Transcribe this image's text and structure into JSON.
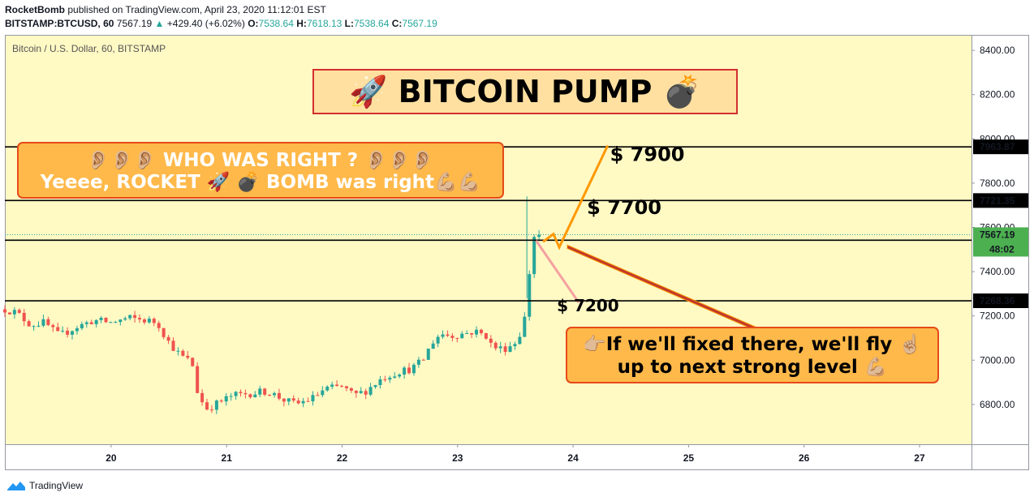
{
  "header": {
    "author": "RocketBomb",
    "published_text": "published on TradingView.com, April 23, 2020 11:12:01 EST",
    "symbol": "BITSTAMP:BTCUSD, 60",
    "last": "7567.19",
    "change": "+429.40 (+6.02%)",
    "o_label": "O:",
    "o": "7538.64",
    "h_label": "H:",
    "h": "7618.13",
    "l_label": "L:",
    "l": "7538.64",
    "c_label": "C:",
    "c": "7567.19"
  },
  "footer": {
    "brand": "TradingView"
  },
  "colors": {
    "background": "#fff9c4",
    "candle_up": "#26a69a",
    "candle_down": "#ef5350",
    "line_orange": "#ff9800",
    "line_pink": "#f4a0a0",
    "line_red": "#c0392b",
    "callout_fill": "#ffb94a",
    "callout_border": "#e64a19",
    "banner_fill": "#ffe0a0",
    "banner_border": "#d32f2f"
  },
  "chart_data": {
    "type": "candlestick",
    "title": "Bitcoin / U.S. Dollar, 60, BITSTAMP",
    "x_ticks": [
      "20",
      "21",
      "22",
      "23",
      "24",
      "25",
      "26",
      "27"
    ],
    "x_tick_values": [
      20,
      21,
      22,
      23,
      24,
      25,
      26,
      27
    ],
    "x_range": [
      19.08,
      27.45
    ],
    "ylim": [
      6620,
      8470
    ],
    "y_ticks": [
      "6800.00",
      "7000.00",
      "7200.00",
      "7400.00",
      "7600.00",
      "7800.00",
      "8000.00",
      "8200.00",
      "8400.00"
    ],
    "y_tick_values": [
      6800,
      7000,
      7200,
      7400,
      7600,
      7800,
      8000,
      8200,
      8400
    ],
    "grid": false,
    "close_path": [
      [
        19.08,
        7230
      ],
      [
        19.18,
        7215
      ],
      [
        19.3,
        7160
      ],
      [
        19.42,
        7170
      ],
      [
        19.55,
        7110
      ],
      [
        19.7,
        7150
      ],
      [
        19.85,
        7180
      ],
      [
        20.0,
        7170
      ],
      [
        20.15,
        7190
      ],
      [
        20.3,
        7180
      ],
      [
        20.4,
        7170
      ],
      [
        20.5,
        7080
      ],
      [
        20.6,
        7020
      ],
      [
        20.7,
        6990
      ],
      [
        20.75,
        6850
      ],
      [
        20.82,
        6780
      ],
      [
        20.9,
        6800
      ],
      [
        21.05,
        6840
      ],
      [
        21.2,
        6850
      ],
      [
        21.35,
        6860
      ],
      [
        21.5,
        6820
      ],
      [
        21.6,
        6800
      ],
      [
        21.75,
        6830
      ],
      [
        21.85,
        6870
      ],
      [
        22.0,
        6880
      ],
      [
        22.1,
        6840
      ],
      [
        22.2,
        6860
      ],
      [
        22.35,
        6920
      ],
      [
        22.5,
        6950
      ],
      [
        22.6,
        6960
      ],
      [
        22.7,
        7000
      ],
      [
        22.78,
        7080
      ],
      [
        22.85,
        7120
      ],
      [
        22.95,
        7110
      ],
      [
        23.05,
        7120
      ],
      [
        23.15,
        7130
      ],
      [
        23.25,
        7110
      ],
      [
        23.3,
        7060
      ],
      [
        23.4,
        7050
      ],
      [
        23.5,
        7080
      ],
      [
        23.56,
        7140
      ],
      [
        23.6,
        7240
      ],
      [
        23.62,
        7380
      ],
      [
        23.64,
        7560
      ],
      [
        23.68,
        7560
      ],
      [
        23.72,
        7567.19
      ]
    ],
    "horizontal_levels": [
      {
        "value": 7963.87,
        "label": "7963.87"
      },
      {
        "value": 7721.35,
        "label": "7721.35"
      },
      {
        "value": 7542.1,
        "label": "7542.10"
      },
      {
        "value": 7268.36,
        "label": "7268.36"
      }
    ],
    "last_price": {
      "value": 7567.19,
      "label": "7567.19",
      "countdown": "48:02"
    },
    "projection_up": [
      [
        23.74,
        7535
      ],
      [
        23.83,
        7570
      ],
      [
        23.88,
        7510
      ],
      [
        24.3,
        7970
      ]
    ],
    "projection_down": [
      [
        23.68,
        7540
      ],
      [
        24.05,
        7260
      ]
    ],
    "target_labels": [
      {
        "text": "$ 7900",
        "x": 24.32,
        "y": 7900
      },
      {
        "text": "$ 7700",
        "x": 24.12,
        "y": 7660
      },
      {
        "text": "$ 7200",
        "x": 23.86,
        "y": 7220
      }
    ],
    "banner": "🚀 BITCOIN PUMP 💣",
    "callout_left": [
      "👂🏼👂🏼👂🏼  WHO WAS RIGHT ? 👂🏼👂🏼👂🏼",
      "Yeeee, ROCKET 🚀 💣 BOMB was right💪🏼💪🏼"
    ],
    "callout_right": [
      "👉🏼If we'll fixed there, we'll fly ☝🏼",
      "up to next strong level 💪🏼"
    ]
  }
}
